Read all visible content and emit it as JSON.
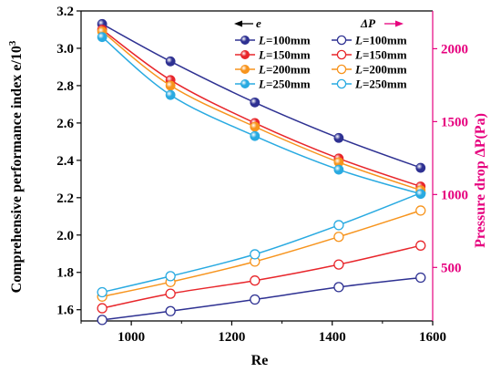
{
  "chart_data": {
    "type": "line",
    "x_label": "Re",
    "y_left_label": "Comprehensive performance index e/10",
    "y_left_label_sup": "3",
    "y_right_label": "Pressure drop ΔP(Pa)",
    "x_ticks": [
      1000,
      1200,
      1400,
      1600
    ],
    "y_left_ticks": [
      1.6,
      1.8,
      2.0,
      2.2,
      2.4,
      2.6,
      2.8,
      3.0,
      3.2
    ],
    "y_right_ticks": [
      500,
      1000,
      1500,
      2000
    ],
    "xlim": [
      900,
      1600
    ],
    "ylim_left": [
      1.54,
      3.2
    ],
    "ylim_right": [
      133,
      2259
    ],
    "x": [
      942,
      1078,
      1246,
      1413,
      1576
    ],
    "legend_headers": {
      "e": "e",
      "dp": "ΔP"
    },
    "colors": {
      "L100": "#2e3192",
      "L150": "#e8262b",
      "L200": "#f7941d",
      "L250": "#29aae1",
      "right_axis": "#e6007e",
      "text": "#000000"
    },
    "series_e": [
      {
        "name": "L=100mm",
        "prefix": "L",
        "suffix": "=100mm",
        "color_key": "L100",
        "values": [
          3.13,
          2.93,
          2.71,
          2.52,
          2.36
        ]
      },
      {
        "name": "L=150mm",
        "prefix": "L",
        "suffix": "=150mm",
        "color_key": "L150",
        "values": [
          3.1,
          2.83,
          2.6,
          2.41,
          2.26
        ]
      },
      {
        "name": "L=200mm",
        "prefix": "L",
        "suffix": "=200mm",
        "color_key": "L200",
        "values": [
          3.09,
          2.8,
          2.58,
          2.39,
          2.24
        ]
      },
      {
        "name": "L=250mm",
        "prefix": "L",
        "suffix": "=250mm",
        "color_key": "L250",
        "values": [
          3.06,
          2.75,
          2.53,
          2.35,
          2.22
        ]
      }
    ],
    "series_dp": [
      {
        "name": "L=100mm",
        "prefix": "L",
        "suffix": "=100mm",
        "color_key": "L100",
        "values": [
          140,
          200,
          280,
          365,
          430
        ]
      },
      {
        "name": "L=150mm",
        "prefix": "L",
        "suffix": "=150mm",
        "color_key": "L150",
        "values": [
          220,
          320,
          410,
          520,
          650
        ]
      },
      {
        "name": "L=200mm",
        "prefix": "L",
        "suffix": "=200mm",
        "color_key": "L200",
        "values": [
          300,
          400,
          540,
          710,
          890
        ]
      },
      {
        "name": "L=250mm",
        "prefix": "L",
        "suffix": "=250mm",
        "color_key": "L250",
        "values": [
          330,
          440,
          590,
          790,
          1010
        ]
      }
    ]
  }
}
